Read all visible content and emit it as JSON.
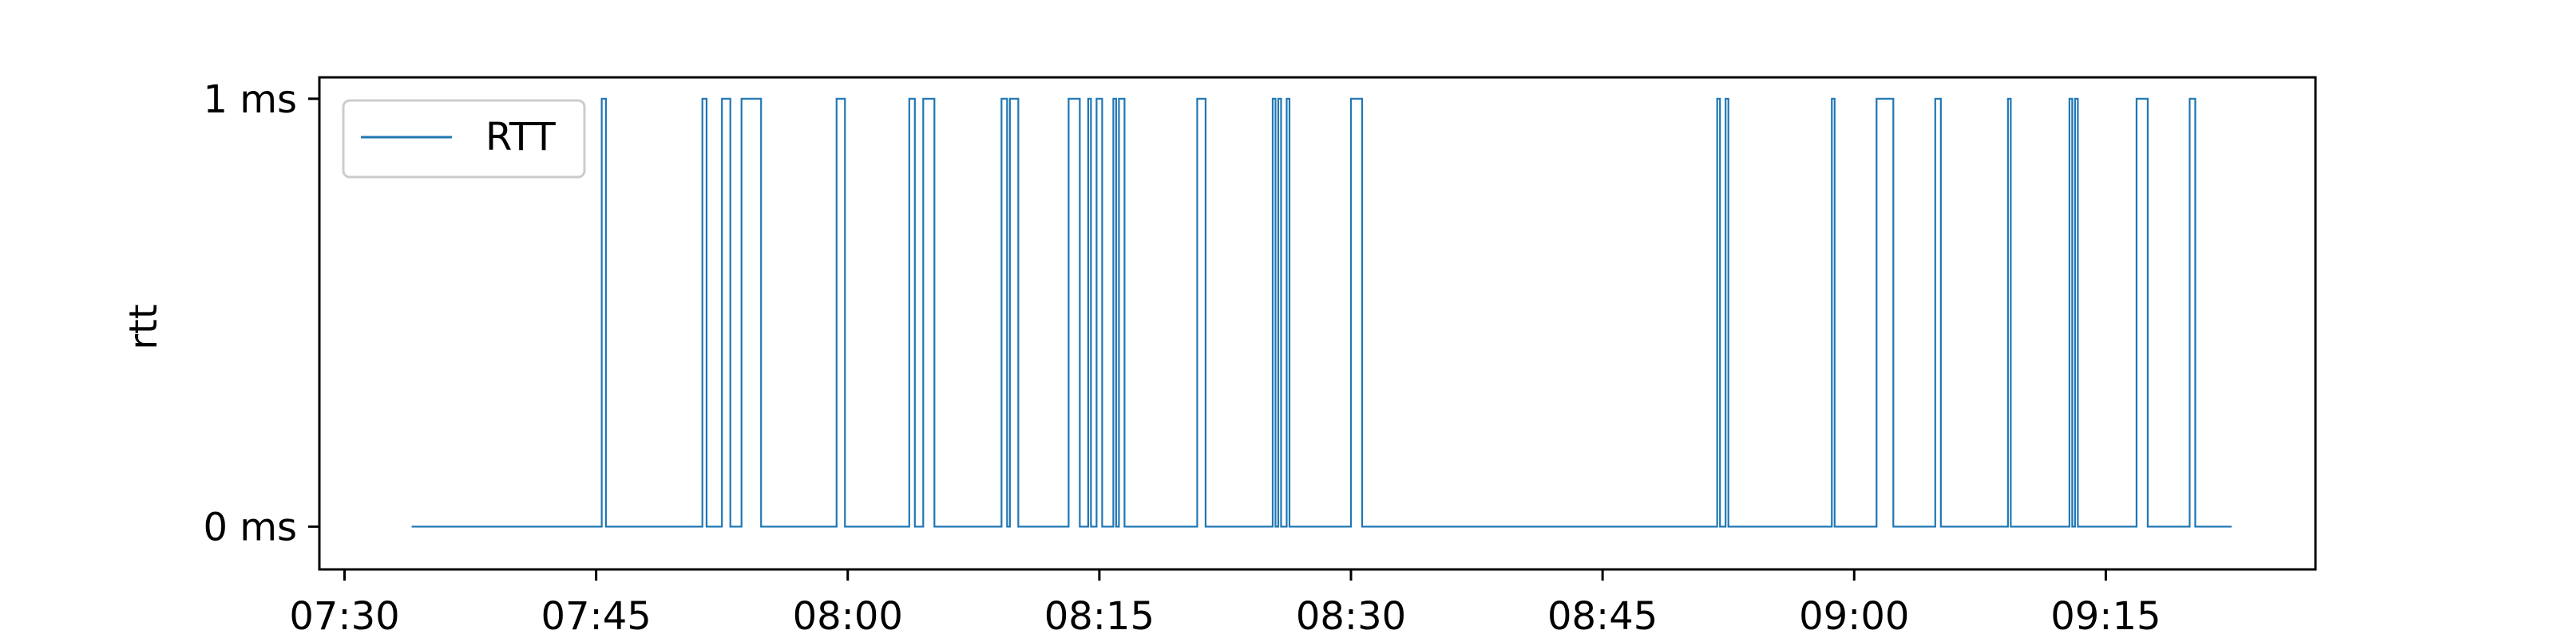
{
  "chart_data": {
    "type": "line",
    "title": "",
    "xlabel": "",
    "ylabel": "rtt",
    "y_tick_labels": [
      "0 ms",
      "1 ms"
    ],
    "y_ticks": [
      0,
      1
    ],
    "ylim": [
      -0.1,
      1.05
    ],
    "x_tick_labels": [
      "07:30",
      "07:45",
      "08:00",
      "08:15",
      "08:30",
      "08:45",
      "09:00",
      "09:15"
    ],
    "xlim": [
      "07:28:30",
      "09:27:30"
    ],
    "grid": false,
    "legend": {
      "position": "top-left",
      "entries": [
        "RTT"
      ]
    },
    "series": [
      {
        "name": "RTT",
        "color": "#1f77b4",
        "step": "post",
        "points": [
          [
            "07:34:00",
            0
          ],
          [
            "07:45:20",
            1
          ],
          [
            "07:45:35",
            0
          ],
          [
            "07:51:20",
            1
          ],
          [
            "07:51:35",
            0
          ],
          [
            "07:52:30",
            1
          ],
          [
            "07:53:00",
            0
          ],
          [
            "07:53:40",
            1
          ],
          [
            "07:54:50",
            0
          ],
          [
            "07:59:20",
            1
          ],
          [
            "07:59:50",
            0
          ],
          [
            "08:03:40",
            1
          ],
          [
            "08:04:00",
            0
          ],
          [
            "08:04:30",
            1
          ],
          [
            "08:05:10",
            0
          ],
          [
            "08:09:10",
            1
          ],
          [
            "08:09:30",
            0
          ],
          [
            "08:09:40",
            1
          ],
          [
            "08:10:10",
            0
          ],
          [
            "08:13:10",
            1
          ],
          [
            "08:13:50",
            0
          ],
          [
            "08:14:20",
            1
          ],
          [
            "08:14:30",
            0
          ],
          [
            "08:14:50",
            1
          ],
          [
            "08:15:10",
            0
          ],
          [
            "08:15:50",
            1
          ],
          [
            "08:16:00",
            0
          ],
          [
            "08:16:10",
            1
          ],
          [
            "08:16:30",
            0
          ],
          [
            "08:20:50",
            1
          ],
          [
            "08:21:20",
            0
          ],
          [
            "08:25:20",
            1
          ],
          [
            "08:25:30",
            0
          ],
          [
            "08:25:40",
            1
          ],
          [
            "08:25:50",
            0
          ],
          [
            "08:26:10",
            1
          ],
          [
            "08:26:20",
            0
          ],
          [
            "08:30:00",
            1
          ],
          [
            "08:30:40",
            0
          ],
          [
            "08:51:50",
            1
          ],
          [
            "08:52:00",
            0
          ],
          [
            "08:52:20",
            1
          ],
          [
            "08:52:30",
            0
          ],
          [
            "08:58:40",
            1
          ],
          [
            "08:58:50",
            0
          ],
          [
            "09:01:20",
            1
          ],
          [
            "09:02:20",
            0
          ],
          [
            "09:04:50",
            1
          ],
          [
            "09:05:10",
            0
          ],
          [
            "09:09:10",
            1
          ],
          [
            "09:09:20",
            0
          ],
          [
            "09:12:50",
            1
          ],
          [
            "09:13:00",
            0
          ],
          [
            "09:13:10",
            1
          ],
          [
            "09:13:20",
            0
          ],
          [
            "09:16:50",
            1
          ],
          [
            "09:17:30",
            0
          ],
          [
            "09:20:00",
            1
          ],
          [
            "09:20:20",
            0
          ],
          [
            "09:22:30",
            0
          ]
        ]
      }
    ]
  }
}
